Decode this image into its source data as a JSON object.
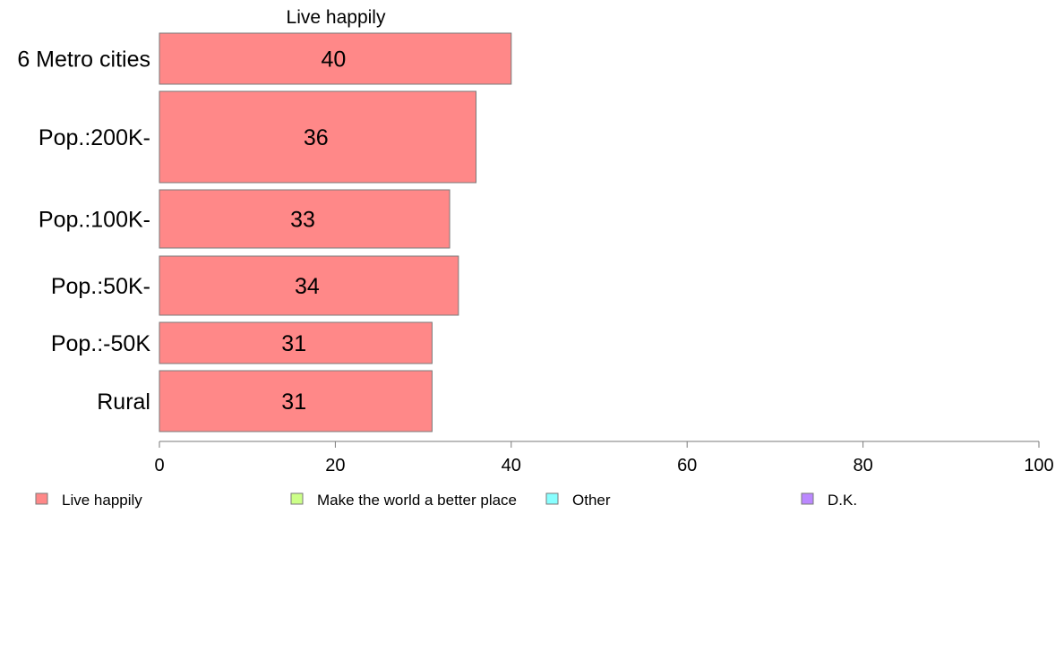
{
  "chart_data": {
    "type": "bar",
    "orientation": "horizontal",
    "title": "Live happily",
    "categories": [
      "6 Metro cities",
      "Pop.:200K-",
      "Pop.:100K-",
      "Pop.:50K-",
      "Pop.:-50K",
      "Rural"
    ],
    "series": [
      {
        "name": "Live happily",
        "values": [
          40,
          36,
          33,
          34,
          31,
          31
        ],
        "color": "#ff8888"
      }
    ],
    "data_labels": [
      "40",
      "36",
      "33",
      "34",
      "31",
      "31"
    ],
    "xlim": [
      0,
      100
    ],
    "xticks": [
      0,
      20,
      40,
      60,
      80,
      100
    ],
    "grid": false,
    "legend": {
      "position": "bottom",
      "entries": [
        {
          "label": "Live happily",
          "color": "#ff8888"
        },
        {
          "label": "Make the world a better place",
          "color": "#ccff88"
        },
        {
          "label": "Other",
          "color": "#88ffff"
        },
        {
          "label": "D.K.",
          "color": "#bb88ff"
        }
      ]
    }
  }
}
